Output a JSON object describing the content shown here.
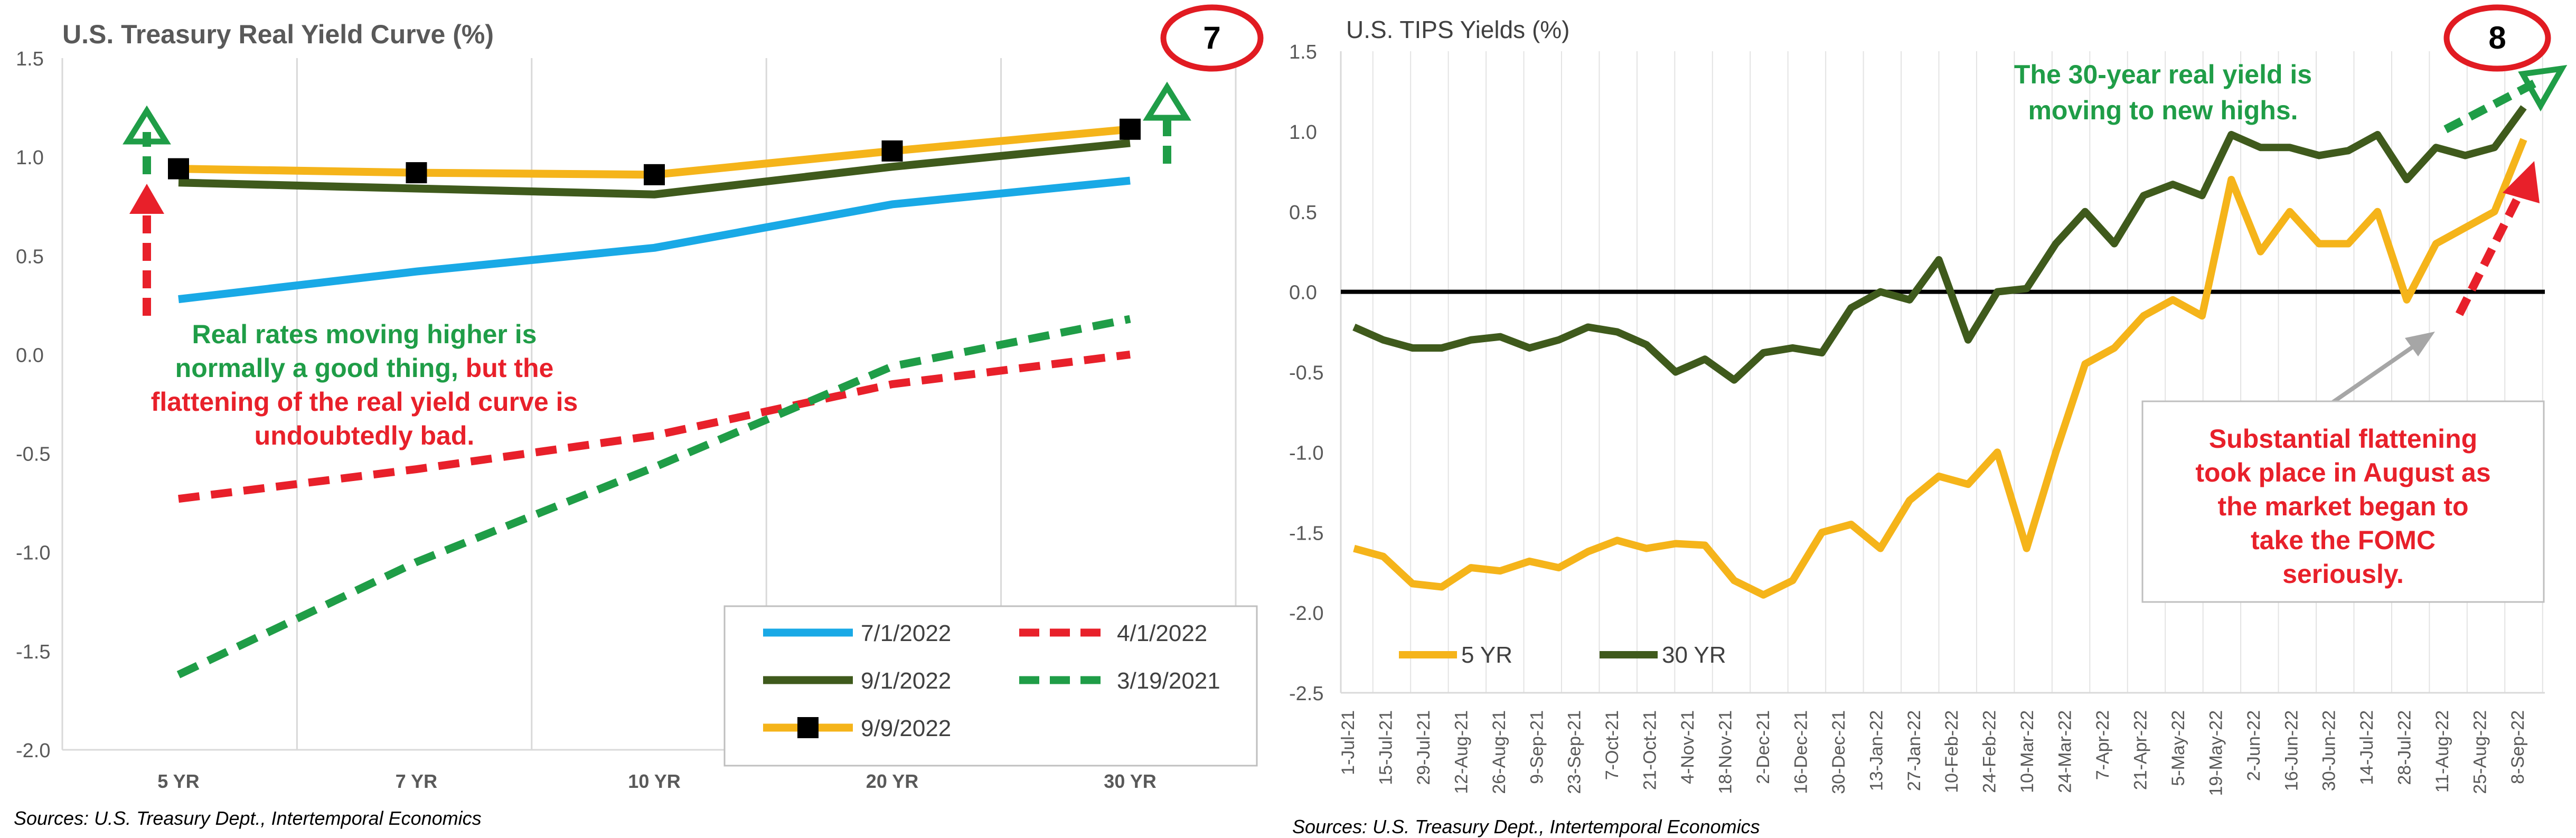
{
  "chart_data": [
    {
      "type": "line",
      "title": "U.S. Treasury Real Yield Curve (%)",
      "badge": "7",
      "categories": [
        "5 YR",
        "7 YR",
        "10 YR",
        "20 YR",
        "30 YR"
      ],
      "ylim": [
        -2.0,
        1.5
      ],
      "yticks": [
        "1.5",
        "1.0",
        "0.5",
        "0.0",
        "-0.5",
        "-1.0",
        "-1.5",
        "-2.0"
      ],
      "grid": "vertical",
      "legend": "bottom-right",
      "series": [
        {
          "name": "7/1/2022",
          "values": [
            0.28,
            0.42,
            0.54,
            0.76,
            0.88
          ],
          "color": "#19a9e6",
          "style": "solid"
        },
        {
          "name": "4/1/2022",
          "values": [
            -0.73,
            -0.58,
            -0.41,
            -0.15,
            0.0
          ],
          "color": "#e8202a",
          "style": "dashed"
        },
        {
          "name": "9/1/2022",
          "values": [
            0.87,
            0.84,
            0.81,
            0.95,
            1.07
          ],
          "color": "#3f5a1c",
          "style": "solid"
        },
        {
          "name": "3/19/2021",
          "values": [
            -1.62,
            -1.05,
            -0.57,
            -0.06,
            0.18
          ],
          "color": "#1f9d47",
          "style": "dashed"
        },
        {
          "name": "9/9/2022",
          "values": [
            0.94,
            0.92,
            0.91,
            1.03,
            1.14
          ],
          "color": "#f5b41a",
          "style": "solid",
          "marker": "square"
        }
      ],
      "annotation": {
        "line1": "Real rates moving higher is",
        "line2_green": "normally a good thing,",
        "line2_red": " but the",
        "line3": "flattening of the real yield curve is",
        "line4": "undoubtedly bad."
      },
      "source": "Sources: U.S. Treasury Dept., Intertemporal Economics",
      "colors": {
        "green_text": "#1f9d47",
        "red_text": "#e8202a",
        "badge_ring": "#e11b22",
        "marker": "#000000"
      }
    },
    {
      "type": "line",
      "title": "U.S. TIPS Yields (%)",
      "badge": "8",
      "ylim": [
        -2.5,
        1.5
      ],
      "yticks": [
        "1.5",
        "1.0",
        "0.5",
        "0.0",
        "-0.5",
        "-1.0",
        "-1.5",
        "-2.0",
        "-2.5"
      ],
      "x_tick_labels": [
        "1-Jul-21",
        "15-Jul-21",
        "29-Jul-21",
        "12-Aug-21",
        "26-Aug-21",
        "9-Sep-21",
        "23-Sep-21",
        "7-Oct-21",
        "21-Oct-21",
        "4-Nov-21",
        "18-Nov-21",
        "2-Dec-21",
        "16-Dec-21",
        "30-Dec-21",
        "13-Jan-22",
        "27-Jan-22",
        "10-Feb-22",
        "24-Feb-22",
        "10-Mar-22",
        "24-Mar-22",
        "7-Apr-22",
        "21-Apr-22",
        "5-May-22",
        "19-May-22",
        "2-Jun-22",
        "16-Jun-22",
        "30-Jun-22",
        "14-Jul-22",
        "28-Jul-22",
        "11-Aug-22",
        "25-Aug-22",
        "8-Sep-22"
      ],
      "grid": "vertical",
      "legend": "bottom-left",
      "series": [
        {
          "name": "5 YR",
          "color": "#f5b41a",
          "values": [
            -1.6,
            -1.65,
            -1.82,
            -1.84,
            -1.72,
            -1.74,
            -1.68,
            -1.72,
            -1.62,
            -1.55,
            -1.6,
            -1.57,
            -1.58,
            -1.8,
            -1.89,
            -1.8,
            -1.5,
            -1.45,
            -1.6,
            -1.3,
            -1.15,
            -1.2,
            -1.0,
            -1.6,
            -1.0,
            -0.45,
            -0.35,
            -0.15,
            -0.05,
            -0.15,
            0.7,
            0.25,
            0.5,
            0.3,
            0.3,
            0.5,
            -0.05,
            0.3,
            0.4,
            0.5,
            0.95
          ]
        },
        {
          "name": "30 YR",
          "color": "#3f5a1c",
          "values": [
            -0.22,
            -0.3,
            -0.35,
            -0.35,
            -0.3,
            -0.28,
            -0.35,
            -0.3,
            -0.22,
            -0.25,
            -0.33,
            -0.5,
            -0.42,
            -0.55,
            -0.38,
            -0.35,
            -0.38,
            -0.1,
            0.0,
            -0.05,
            0.2,
            -0.3,
            0.0,
            0.02,
            0.3,
            0.5,
            0.3,
            0.6,
            0.67,
            0.6,
            0.98,
            0.9,
            0.9,
            0.85,
            0.88,
            0.98,
            0.7,
            0.9,
            0.85,
            0.9,
            1.15
          ]
        }
      ],
      "annotation_top": {
        "line1": "The 30-year real yield is",
        "line2": "moving to new highs."
      },
      "annotation_box": {
        "lines": [
          "Substantial flattening",
          "took place in August as",
          "the market began to",
          "take the FOMC",
          "seriously."
        ]
      },
      "source": "Sources: U.S. Treasury Dept., Intertemporal Economics",
      "colors": {
        "green_text": "#1f9d47",
        "red_text": "#e8202a",
        "zero_line": "#000000",
        "callout_arrow": "#a6a6a6"
      }
    }
  ]
}
